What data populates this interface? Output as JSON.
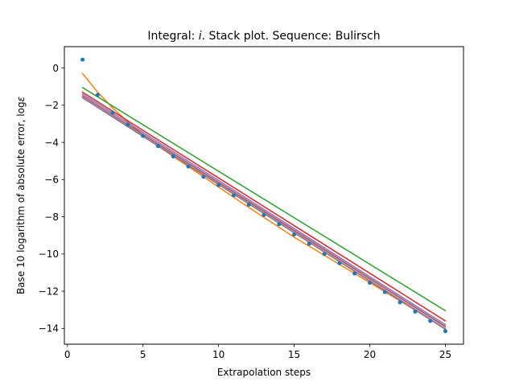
{
  "chart_data": {
    "type": "scatter",
    "title": "Integral: i. Stack plot. Sequence: Bulirsch",
    "title_prefix": "Integral: ",
    "title_italic": "i",
    "title_suffix": ". Stack plot. Sequence: Bulirsch",
    "xlabel": "Extrapolation steps",
    "ylabel_prefix": "Base 10 logarithm of absolute error, log",
    "ylabel_symbol": "ε",
    "xlim": [
      -0.2,
      26.2
    ],
    "ylim": [
      -14.85,
      1.15
    ],
    "xticks": [
      0,
      5,
      10,
      15,
      20,
      25
    ],
    "yticks": [
      0,
      -2,
      -4,
      -6,
      -8,
      -10,
      -12,
      -14
    ],
    "grid": false,
    "legend": "none",
    "points": {
      "color": "#1f77b4",
      "x": [
        1,
        2,
        3,
        4,
        5,
        6,
        7,
        8,
        9,
        10,
        11,
        12,
        13,
        14,
        15,
        16,
        17,
        18,
        19,
        20,
        21,
        22,
        23,
        24,
        25
      ],
      "y": [
        0.45,
        -1.45,
        -2.4,
        -3.05,
        -3.65,
        -4.2,
        -4.75,
        -5.3,
        -5.85,
        -6.3,
        -6.85,
        -7.35,
        -7.9,
        -8.4,
        -8.95,
        -9.45,
        -10.0,
        -10.5,
        -11.05,
        -11.55,
        -12.05,
        -12.6,
        -13.1,
        -13.6,
        -14.15
      ]
    },
    "series": [
      {
        "color": "#ff7f0e",
        "x": [
          1,
          2,
          3,
          4,
          5,
          6,
          8,
          10,
          12,
          15,
          19,
          25
        ],
        "y": [
          -0.3,
          -1.3,
          -2.15,
          -2.9,
          -3.6,
          -4.2,
          -5.3,
          -6.4,
          -7.5,
          -9.1,
          -11.05,
          -14.0
        ]
      },
      {
        "color": "#2ca02c",
        "x": [
          1,
          25
        ],
        "y": [
          -1.05,
          -13.05
        ]
      },
      {
        "color": "#d62728",
        "x": [
          1,
          25
        ],
        "y": [
          -1.3,
          -13.6
        ]
      },
      {
        "color": "#9467bd",
        "x": [
          1,
          25
        ],
        "y": [
          -1.4,
          -13.8
        ]
      },
      {
        "color": "#8c564b",
        "x": [
          1,
          25
        ],
        "y": [
          -1.5,
          -13.9
        ]
      },
      {
        "color": "#e377c2",
        "x": [
          1,
          25
        ],
        "y": [
          -1.55,
          -14.0
        ]
      },
      {
        "color": "#7f7f7f",
        "x": [
          1,
          25
        ],
        "y": [
          -1.6,
          -14.05
        ]
      }
    ]
  }
}
